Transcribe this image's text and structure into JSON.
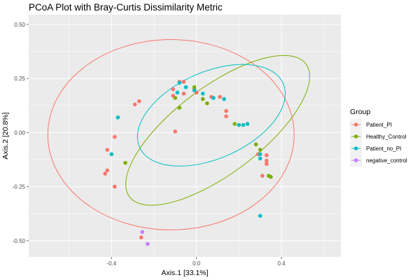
{
  "chart_data": {
    "type": "scatter",
    "title": "PCoA Plot with Bray-Curtis Dissimilarity Metric",
    "xlabel": "Axis.1   [33.1%]",
    "ylabel": "Axis.2   [20.8%]",
    "xlim": [
      -0.79,
      0.68
    ],
    "ylim": [
      -0.575,
      0.545
    ],
    "x_ticks": [
      -0.4,
      0.0,
      0.4
    ],
    "x_tick_labels": [
      "-0.4",
      "0.0",
      "0.4"
    ],
    "y_ticks": [
      -0.5,
      -0.25,
      0.0,
      0.25,
      0.5
    ],
    "y_tick_labels": [
      "-0.50",
      "-0.25",
      "0.00",
      "0.25",
      "0.50"
    ],
    "grid": true,
    "legend": {
      "title": "Group",
      "placement": "right"
    },
    "series": [
      {
        "name": "Patient_PI",
        "color": "#F8766D",
        "points": [
          [
            -0.43,
            -0.19
          ],
          [
            -0.42,
            -0.175
          ],
          [
            -0.42,
            -0.08
          ],
          [
            -0.385,
            -0.02
          ],
          [
            -0.385,
            -0.25
          ],
          [
            -0.29,
            0.13
          ],
          [
            -0.27,
            0.145
          ],
          [
            -0.26,
            -0.485
          ],
          [
            -0.11,
            0.2
          ],
          [
            -0.11,
            0.17
          ],
          [
            -0.1,
            0.005
          ],
          [
            -0.08,
            0.235
          ],
          [
            -0.06,
            0.235
          ],
          [
            -0.06,
            0.18
          ],
          [
            -0.01,
            0.2
          ],
          [
            0.0,
            0.185
          ],
          [
            0.07,
            0.165
          ],
          [
            0.11,
            0.165
          ],
          [
            0.14,
            0.075
          ],
          [
            0.14,
            0.1
          ],
          [
            0.29,
            -0.1
          ],
          [
            0.31,
            -0.2
          ],
          [
            0.33,
            -0.105
          ],
          [
            0.33,
            -0.13
          ],
          [
            0.33,
            -0.145
          ]
        ]
      },
      {
        "name": "Healthy_Control",
        "color": "#7CAE00",
        "points": [
          [
            -0.335,
            -0.14
          ],
          [
            -0.1,
            0.16
          ],
          [
            -0.08,
            0.115
          ],
          [
            -0.01,
            0.21
          ],
          [
            0.03,
            0.155
          ],
          [
            0.05,
            0.135
          ],
          [
            0.18,
            0.04
          ],
          [
            0.28,
            -0.055
          ],
          [
            0.3,
            -0.08
          ],
          [
            0.34,
            -0.2
          ],
          [
            0.35,
            -0.205
          ]
        ]
      },
      {
        "name": "Patient_no_PI",
        "color": "#00BFC4",
        "points": [
          [
            -0.37,
            0.07
          ],
          [
            -0.4,
            -0.1
          ],
          [
            -0.09,
            0.185
          ],
          [
            -0.08,
            0.23
          ],
          [
            -0.05,
            0.21
          ],
          [
            -0.01,
            0.195
          ],
          [
            0.03,
            0.18
          ],
          [
            0.08,
            0.16
          ],
          [
            0.13,
            0.155
          ],
          [
            0.2,
            0.035
          ],
          [
            0.22,
            0.035
          ],
          [
            0.24,
            0.04
          ],
          [
            0.3,
            -0.1
          ],
          [
            0.3,
            -0.12
          ],
          [
            0.3,
            -0.385
          ]
        ]
      },
      {
        "name": "negative_control",
        "color": "#C77CFF",
        "points": [
          [
            -0.255,
            -0.46
          ],
          [
            -0.23,
            -0.515
          ]
        ]
      }
    ],
    "ellipses": [
      {
        "series": "Patient_PI",
        "cx": -0.12,
        "cy": -0.01,
        "rx": 0.58,
        "ry": 0.44,
        "angle_deg": 0
      },
      {
        "series": "Healthy_Control",
        "cx": 0.1,
        "cy": 0.01,
        "rx": 0.52,
        "ry": 0.2,
        "angle_deg": -37
      },
      {
        "series": "Patient_no_PI",
        "cx": 0.07,
        "cy": 0.08,
        "rx": 0.37,
        "ry": 0.2,
        "angle_deg": -24
      }
    ]
  }
}
